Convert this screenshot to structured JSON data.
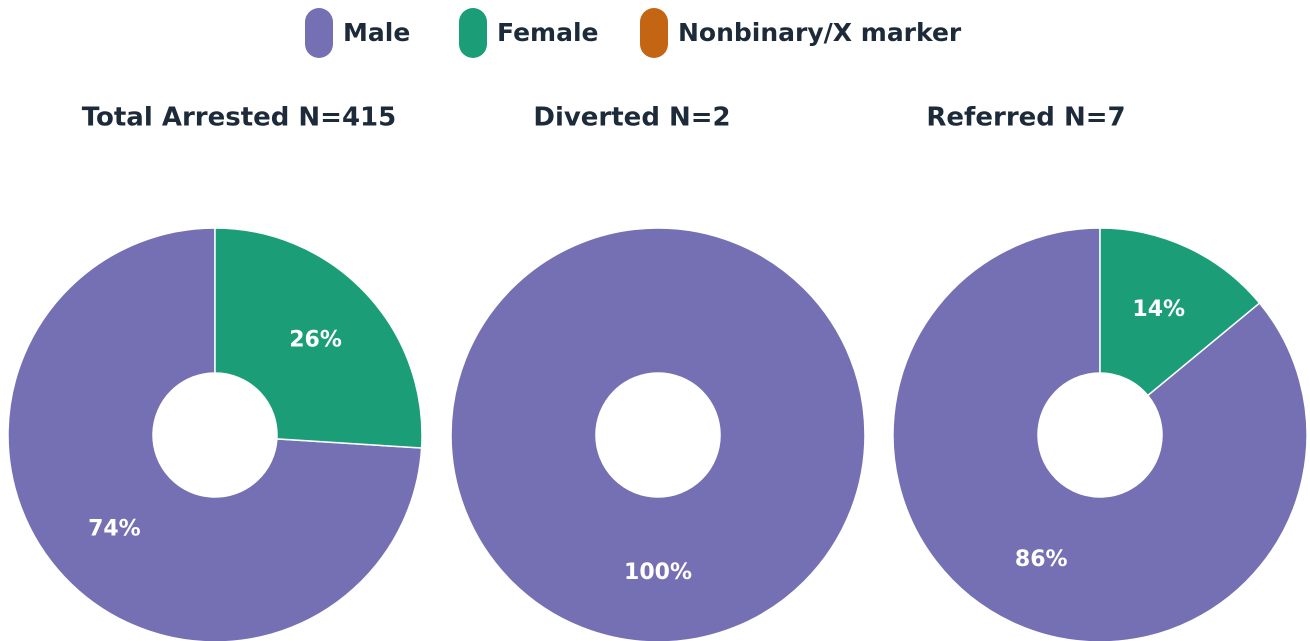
{
  "legend": [
    {
      "name": "Male",
      "color": "#7570b3"
    },
    {
      "name": "Female",
      "color": "#1b9e77"
    },
    {
      "name": "Nonbinary/X marker",
      "color": "#c36513"
    }
  ],
  "chart_data": [
    {
      "type": "pie",
      "title": "Total Arrested N=415",
      "categories": [
        "Male",
        "Female"
      ],
      "values": [
        74,
        26
      ],
      "value_labels": [
        "74%",
        "26%"
      ]
    },
    {
      "type": "pie",
      "title": "Diverted N=2",
      "categories": [
        "Male"
      ],
      "values": [
        100
      ],
      "value_labels": [
        "100%"
      ]
    },
    {
      "type": "pie",
      "title": "Referred N=7",
      "categories": [
        "Male",
        "Female"
      ],
      "values": [
        86,
        14
      ],
      "value_labels": [
        "86%",
        "14%"
      ]
    }
  ]
}
